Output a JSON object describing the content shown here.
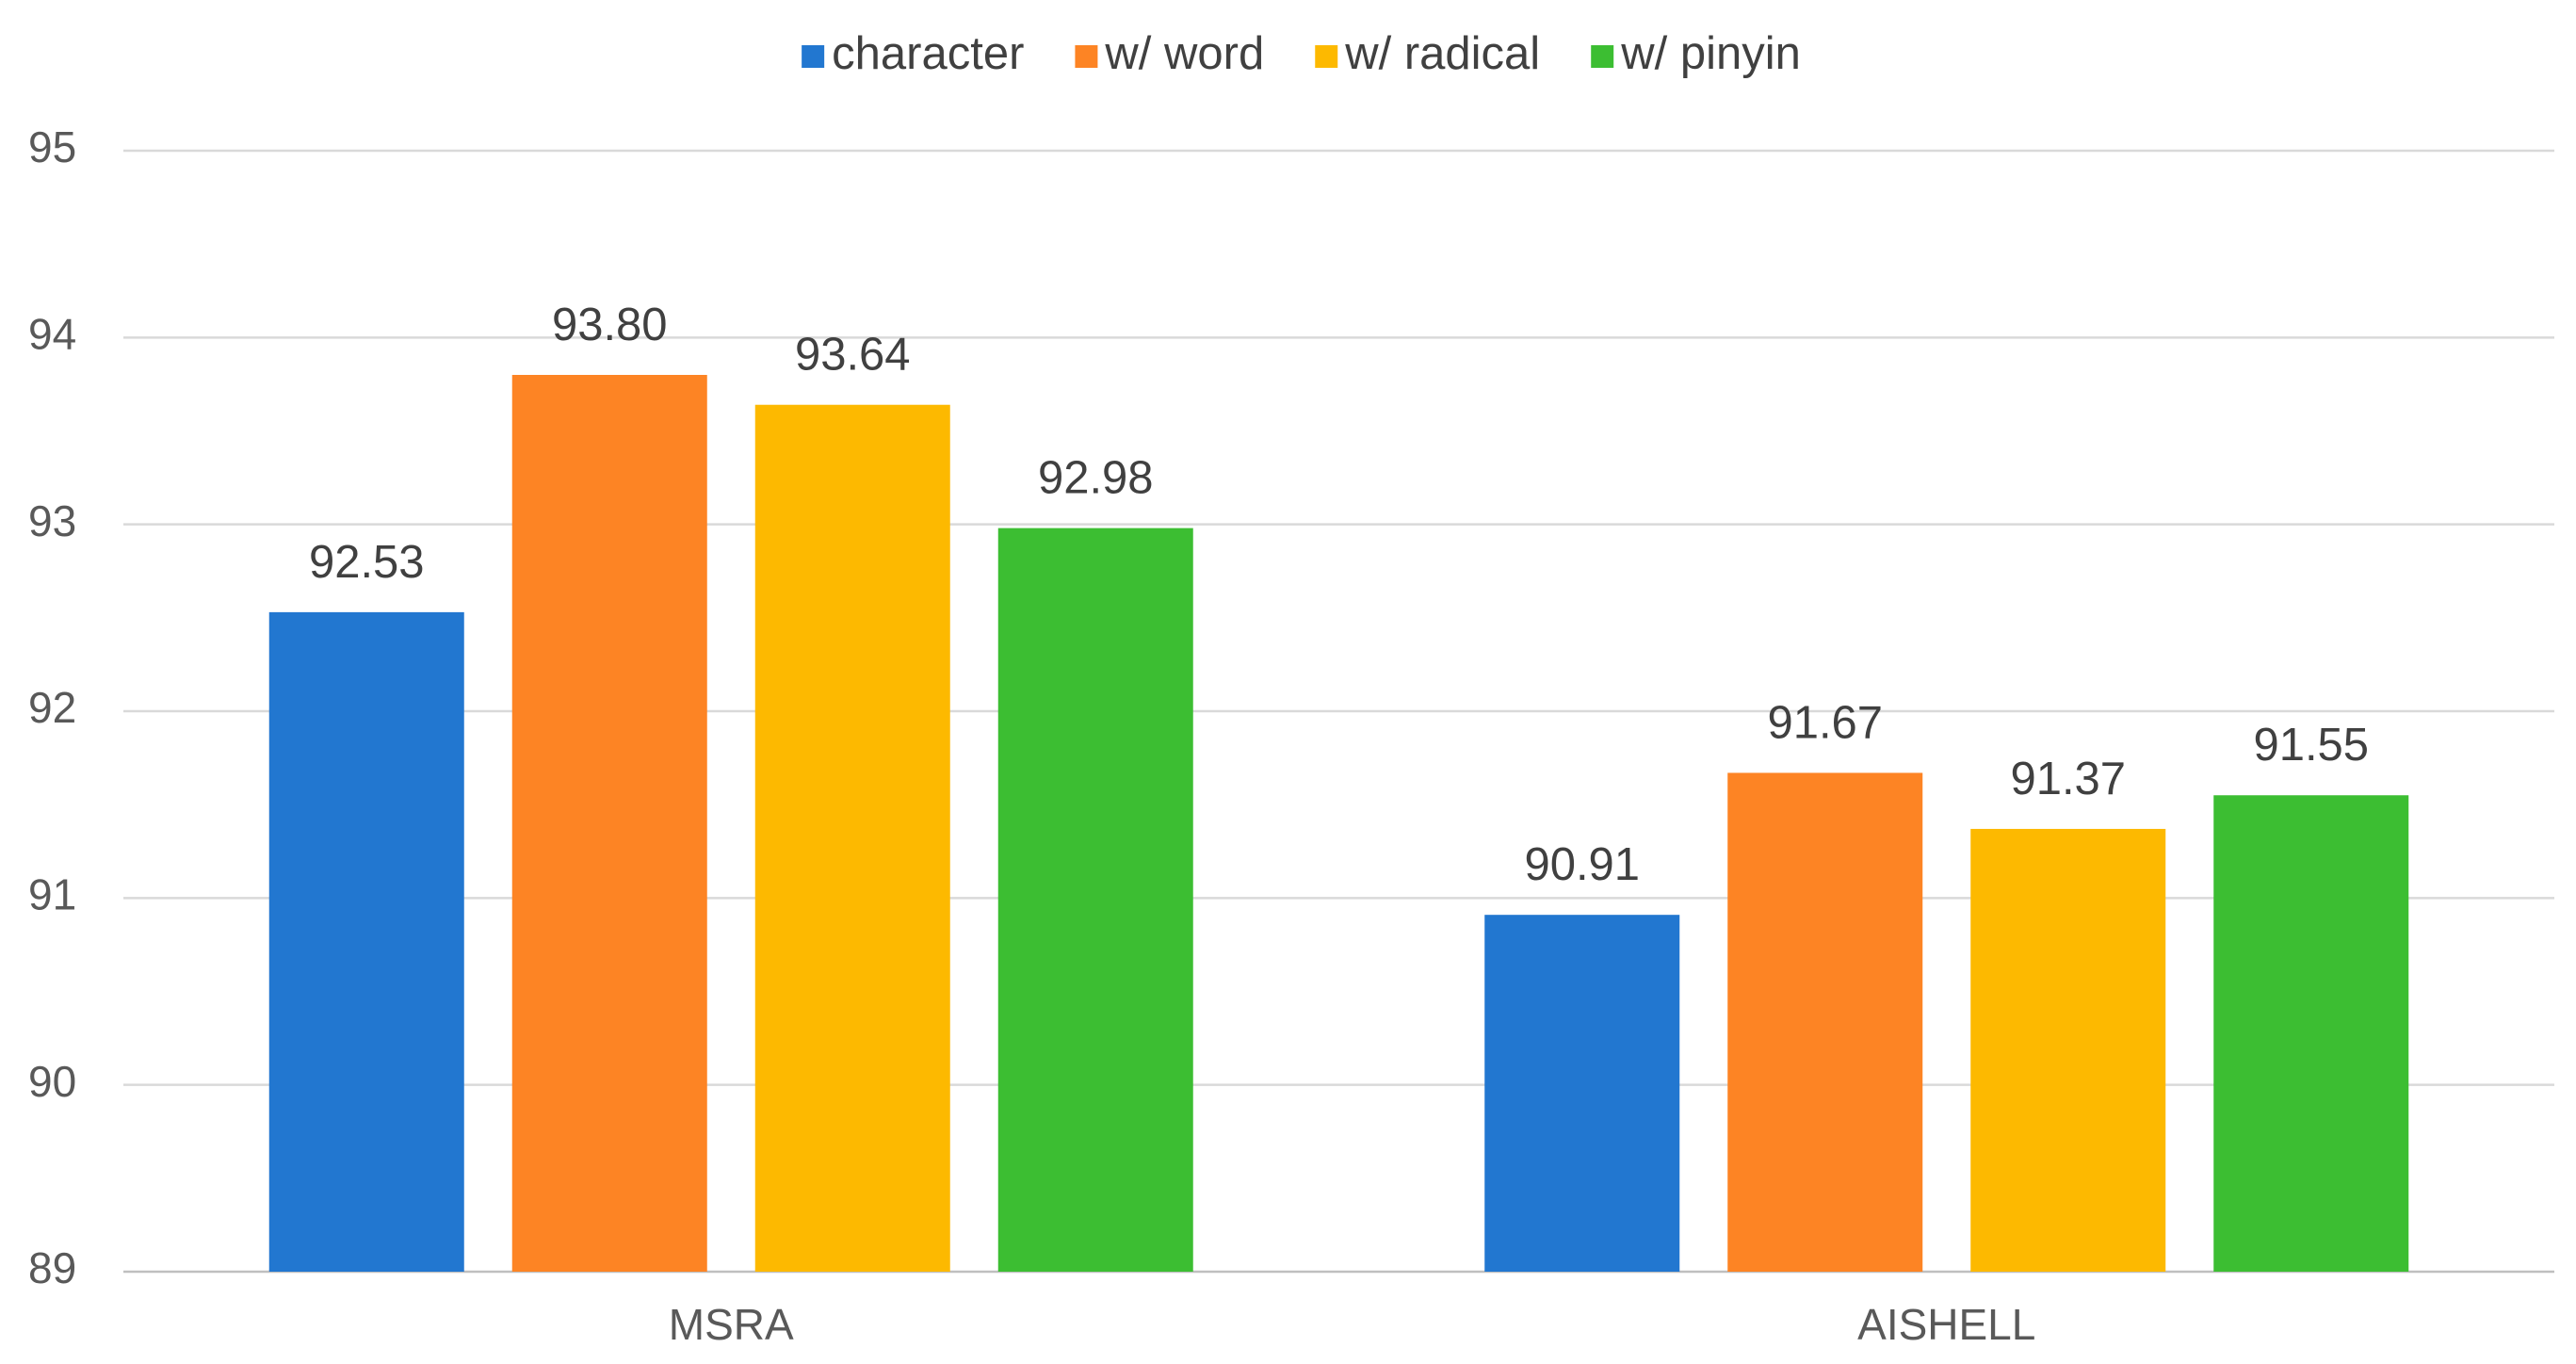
{
  "chart_data": {
    "type": "bar",
    "categories": [
      "MSRA",
      "AISHELL"
    ],
    "series": [
      {
        "name": "character",
        "color": "#2277d0",
        "values": [
          92.53,
          90.91
        ],
        "value_labels": [
          "92.53",
          "90.91"
        ]
      },
      {
        "name": "w/ word",
        "color": "#fd8424",
        "values": [
          93.8,
          91.67
        ],
        "value_labels": [
          "93.80",
          "91.67"
        ]
      },
      {
        "name": "w/ radical",
        "color": "#fdb900",
        "values": [
          93.64,
          91.37
        ],
        "value_labels": [
          "93.64",
          "91.37"
        ]
      },
      {
        "name": "w/ pinyin",
        "color": "#3cbe32",
        "values": [
          92.98,
          91.55
        ],
        "value_labels": [
          "92.98",
          "91.55"
        ]
      }
    ],
    "ylim": [
      89,
      95
    ],
    "yticks": [
      89,
      90,
      91,
      92,
      93,
      94,
      95
    ],
    "grid": true,
    "legend": "top"
  }
}
